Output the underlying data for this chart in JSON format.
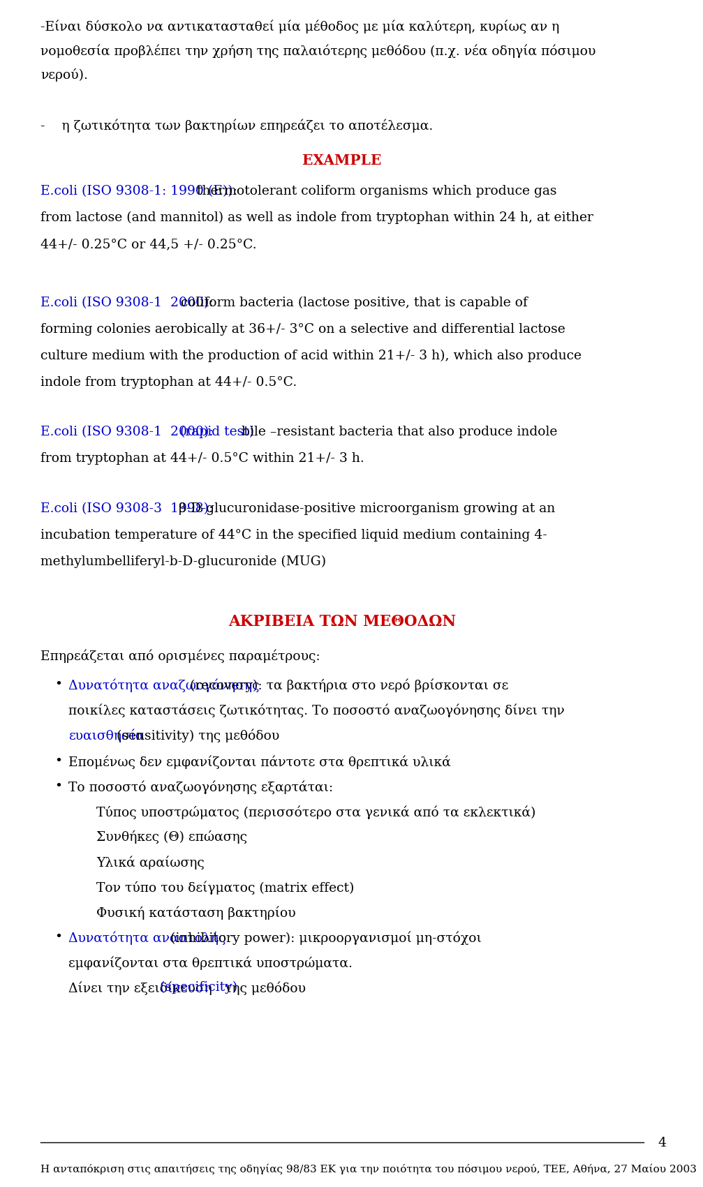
{
  "bg_color": "#ffffff",
  "text_color": "#000000",
  "blue_color": "#0000cd",
  "red_color": "#cc0000",
  "page_number": "4",
  "footer_text": "Η ανταπόκριση στις απαιτήσεις της οδηγίας 98/83 ΕΚ για την ποιότητα του πόσιμου νερού, TEE, Αθήνα, 27 Μαίου 2003",
  "line1": "-Είναι δύσκολο να αντικατασταθεί μία μέθοδος με μία καλύτερη, κυρίως αν η",
  "line2": "νομοθεσία προβλέπει την χρήση της παλαιότερης μεθόδου (π.χ. νέα οδηγία πόσιμου",
  "line3": "νερού).",
  "line4": "-    η ζωτικότητα των βακτηρίων επηρεάζει το αποτέλεσμα.",
  "example_label": "EXAMPLE",
  "ecoli1_blue": "E.coli (ISO 9308-1: 1990 (E)):",
  "ecoli1_rest": " thermotolerant coliform organisms which produce gas",
  "ecoli1_line2": "from lactose (and mannitol) as well as indole from tryptophan within 24 h, at either",
  "ecoli1_line3": "44+/- 0.25°C or 44,5 +/- 0.25°C.",
  "ecoli2_blue": "E.coli (ISO 9308-1  2000):",
  "ecoli2_rest": " coliform bacteria (lactose positive, that is capable of",
  "ecoli2_line2": "forming colonies aerobically at 36+/- 3°C on a selective and differential lactose",
  "ecoli2_line3": "culture medium with the production of acid within 21+/- 3 h), which also produce",
  "ecoli2_line4": "indole from tryptophan at 44+/- 0.5°C.",
  "ecoli3_blue": "E.coli (ISO 9308-1  2000):",
  "ecoli3_rapid": " (rapid test)",
  "ecoli3_rest": " bile –resistant bacteria that also produce indole",
  "ecoli3_line2": "from tryptophan at 44+/- 0.5°C within 21+/- 3 h.",
  "ecoli4_blue": "E.coli (ISO 9308-3  1998):",
  "ecoli4_rest": " β-D-glucuronidase-positive microorganism growing at an",
  "ecoli4_line2": "incubation temperature of 44°C in the specified liquid medium containing 4-",
  "ecoli4_line3": "methylumbelliferyl-b-D-glucuronide (MUG)",
  "akriveia": "ΑΚΡΙΒΕΙΑ ΤΩΝ ΜΕΘΟΔΩΝ",
  "epireaz": "Επηρεάζεται από ορισμένες παραμέτρους:",
  "b1_blue": "Δυνατότητα αναζωογόνησης",
  "b1_rest": " (recovery): τα βακτήρια στο νερό βρίσκονται σε",
  "b1_line2": "ποικίλες καταστάσεις ζωτικότητας. Το ποσοστό αναζωογόνησης δίνει την",
  "b1_sens_blue": "ευαισθησία",
  "b1_sens_rest": " (sensitivity) της μεθόδου",
  "b2_text": "Επομένως δεν εμφανίζονται πάντοτε στα θρεπτικά υλικά",
  "b3_text": "Το ποσοστό αναζωογόνησης εξαρτάται:",
  "sub1": "Τύπος υποστρώματος (περισσότερο στα γενικά από τα εκλεκτικά)",
  "sub2": "Συνθήκες (Θ) επώασης",
  "sub3": "Υλικά αραίωσης",
  "sub4": "Τον τύπο του δείγματος (matrix effect)",
  "sub5": "Φυσική κατάσταση βακτηρίου",
  "b4_blue": "Δυνατότητα αναστολής",
  "b4_rest": " (inhibitory power): μικροοργανισμοί μη-στόχοι",
  "b4_line2": "εμφανίζονται στα θρεπτικά υποστρώματα.",
  "b4_line3a": "Δίνει την εξειδίκευση",
  "b4_spec": " (specificity)",
  "b4_line3b": " της μεθόδου"
}
